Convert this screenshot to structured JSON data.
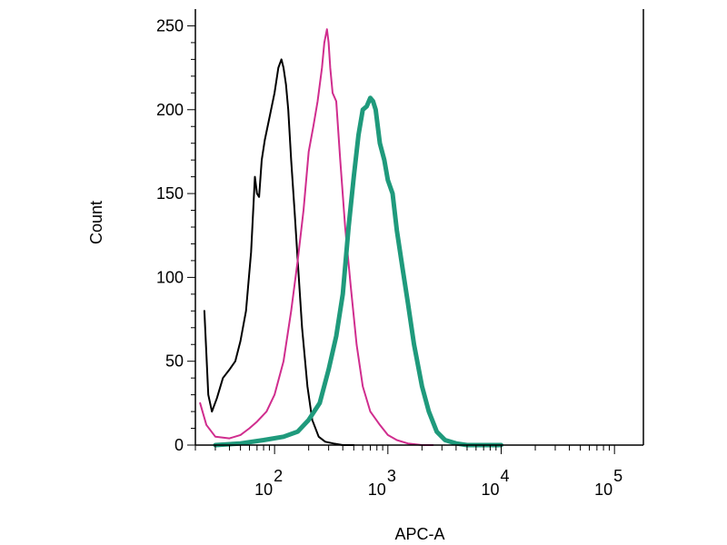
{
  "chart_data": {
    "type": "line",
    "title": "",
    "xlabel": "APC-A",
    "ylabel": "Count",
    "x_scale": "log",
    "xlim": [
      20,
      180000
    ],
    "ylim": [
      0,
      260
    ],
    "grid": false,
    "legend": "none",
    "y_ticks": [
      0,
      50,
      100,
      150,
      200,
      250
    ],
    "y_tick_labels": [
      "0",
      "50",
      "100",
      "150",
      "200",
      "250"
    ],
    "x_ticks": [
      100,
      1000,
      10000,
      100000
    ],
    "x_tick_bases": [
      "10",
      "10",
      "10",
      "10"
    ],
    "x_tick_exponents": [
      "2",
      "3",
      "4",
      "5"
    ],
    "series": [
      {
        "color": "#000000",
        "line_width": 2,
        "x": [
          24,
          26,
          28,
          31,
          35,
          40,
          45,
          50,
          56,
          62,
          67,
          70,
          73,
          77,
          82,
          90,
          100,
          108,
          115,
          120,
          126,
          132,
          140,
          150,
          160,
          175,
          195,
          215,
          245,
          280,
          330,
          400,
          500
        ],
        "y": [
          80,
          30,
          20,
          28,
          40,
          45,
          50,
          62,
          80,
          115,
          160,
          150,
          148,
          170,
          182,
          195,
          210,
          225,
          230,
          225,
          215,
          200,
          170,
          140,
          110,
          70,
          35,
          15,
          5,
          2,
          1,
          0,
          0
        ]
      },
      {
        "color": "#d02d8e",
        "line_width": 2,
        "x": [
          22,
          25,
          30,
          40,
          50,
          60,
          70,
          85,
          100,
          120,
          140,
          160,
          180,
          200,
          220,
          240,
          262,
          275,
          290,
          300,
          310,
          325,
          350,
          380,
          420,
          470,
          530,
          600,
          700,
          850,
          1000,
          1200,
          1500,
          2000,
          2500
        ],
        "y": [
          25,
          12,
          5,
          4,
          6,
          10,
          14,
          20,
          30,
          50,
          80,
          110,
          140,
          175,
          190,
          205,
          225,
          240,
          248,
          240,
          225,
          210,
          205,
          170,
          130,
          95,
          60,
          35,
          20,
          12,
          6,
          3,
          1,
          0,
          0
        ]
      },
      {
        "color": "#1f9a7c",
        "line_width": 5,
        "x": [
          30,
          50,
          80,
          120,
          160,
          200,
          250,
          300,
          350,
          400,
          450,
          500,
          550,
          600,
          650,
          700,
          740,
          780,
          850,
          930,
          1000,
          1100,
          1200,
          1350,
          1500,
          1700,
          2000,
          2300,
          2700,
          3200,
          4000,
          5000,
          7000,
          10000
        ],
        "y": [
          0,
          1,
          3,
          5,
          8,
          15,
          25,
          45,
          65,
          90,
          130,
          160,
          185,
          200,
          202,
          207,
          205,
          200,
          180,
          170,
          158,
          150,
          128,
          105,
          85,
          60,
          35,
          20,
          8,
          3,
          1,
          0,
          0,
          0
        ]
      }
    ]
  }
}
